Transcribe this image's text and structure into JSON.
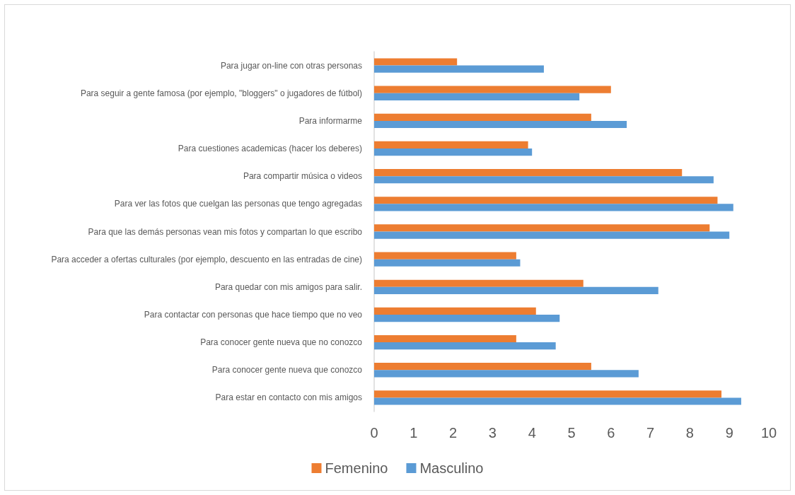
{
  "chart_data": {
    "type": "bar",
    "orientation": "horizontal",
    "categories": [
      "Para jugar on-line con otras personas",
      "Para seguir a gente famosa (por ejemplo, \"bloggers\" o jugadores de fútbol)",
      "Para informarme",
      "Para cuestiones academicas (hacer los deberes)",
      "Para compartir música o videos",
      "Para ver las fotos que cuelgan las personas que tengo agregadas",
      "Para que las demás personas vean mis fotos y compartan lo que escribo",
      "Para acceder a ofertas culturales (por ejemplo, descuento en las entradas de cine)",
      "Para quedar con mis amigos para salir.",
      "Para contactar con personas que hace tiempo que no veo",
      "Para conocer gente nueva que no conozco",
      "Para conocer gente nueva que conozco",
      "Para estar en contacto con mis amigos"
    ],
    "series": [
      {
        "name": "Femenino",
        "color": "#ed7d31",
        "values": [
          2.1,
          6.0,
          5.5,
          3.9,
          7.8,
          8.7,
          8.5,
          3.6,
          5.3,
          4.1,
          3.6,
          5.5,
          8.8
        ]
      },
      {
        "name": "Masculino",
        "color": "#5b9bd5",
        "values": [
          4.3,
          5.2,
          6.4,
          4.0,
          8.6,
          9.1,
          9.0,
          3.7,
          7.2,
          4.7,
          4.6,
          6.7,
          9.3
        ]
      }
    ],
    "xlim": [
      0,
      10
    ],
    "xticks": [
      0,
      1,
      2,
      3,
      4,
      5,
      6,
      7,
      8,
      9,
      10
    ],
    "grid": false,
    "legend": "bottom"
  }
}
